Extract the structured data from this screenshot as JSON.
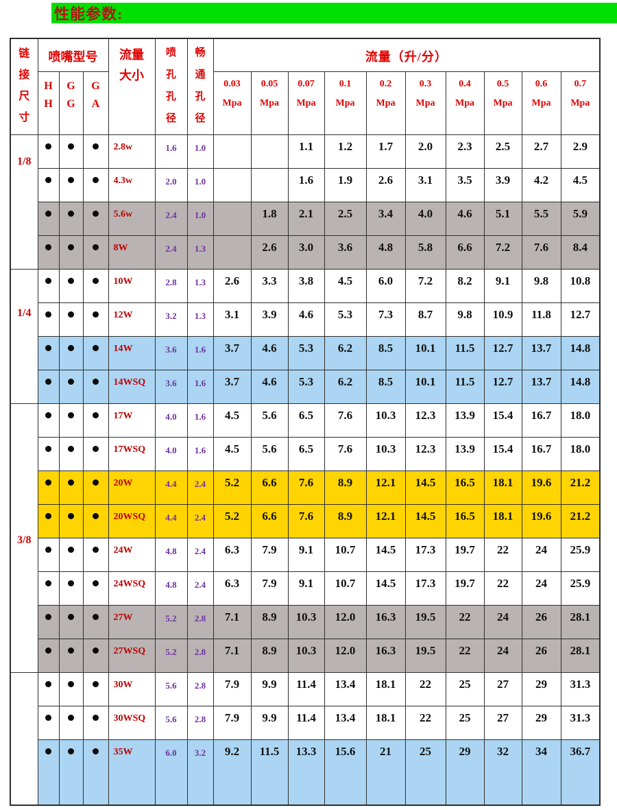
{
  "title": "性能参数:",
  "colors": {
    "row_gray": "#b9b3b3",
    "row_blue": "#abd5f2",
    "row_yellow": "#ffd400",
    "header_green": "#00e000",
    "header_red": "#e10000",
    "value_purple": "#7030a0",
    "model_red": "#c00000",
    "title_red": "#b41414"
  },
  "table": {
    "headers": {
      "connection_size": "链接尺寸",
      "nozzle_model": "喷嘴型号",
      "model_columns": [
        "HH",
        "GG",
        "GA"
      ],
      "flow_size_lines": [
        "流量",
        "大小"
      ],
      "orifice_diameter": "喷孔孔径",
      "free_passage_diameter": "畅通孔径",
      "flow_rate_title": "流量（升/分）",
      "pressures": [
        "0.03",
        "0.05",
        "0.07",
        "0.1",
        "0.2",
        "0.3",
        "0.4",
        "0.5",
        "0.6",
        "0.7"
      ],
      "pressure_unit": "Mpa"
    },
    "sections": [
      {
        "size": "1/8",
        "rows": [
          {
            "model": "2.8w",
            "dots": [
              true,
              true,
              true
            ],
            "orifice": "1.6",
            "passage": "1.0",
            "bg": "white",
            "flows": [
              "",
              "",
              "1.1",
              "1.2",
              "1.7",
              "2.0",
              "2.3",
              "2.5",
              "2.7",
              "2.9"
            ]
          },
          {
            "model": "4.3w",
            "dots": [
              true,
              true,
              true
            ],
            "orifice": "2.0",
            "passage": "1.0",
            "bg": "white",
            "flows": [
              "",
              "",
              "1.6",
              "1.9",
              "2.6",
              "3.1",
              "3.5",
              "3.9",
              "4.2",
              "4.5"
            ]
          },
          {
            "model": "5.6w",
            "dots": [
              true,
              true,
              true
            ],
            "orifice": "2.4",
            "passage": "1.0",
            "bg": "gray",
            "flows": [
              "",
              "1.8",
              "2.1",
              "2.5",
              "3.4",
              "4.0",
              "4.6",
              "5.1",
              "5.5",
              "5.9"
            ]
          },
          {
            "model": "8W",
            "dots": [
              true,
              true,
              true
            ],
            "orifice": "2.4",
            "passage": "1.3",
            "bg": "gray",
            "flows": [
              "",
              "2.6",
              "3.0",
              "3.6",
              "4.8",
              "5.8",
              "6.6",
              "7.2",
              "7.6",
              "8.4"
            ]
          }
        ]
      },
      {
        "size": "1/4",
        "rows": [
          {
            "model": "10W",
            "dots": [
              true,
              true,
              true
            ],
            "orifice": "2.8",
            "passage": "1.3",
            "bg": "white",
            "flows": [
              "2.6",
              "3.3",
              "3.8",
              "4.5",
              "6.0",
              "7.2",
              "8.2",
              "9.1",
              "9.8",
              "10.8"
            ]
          },
          {
            "model": "12W",
            "dots": [
              true,
              true,
              true
            ],
            "orifice": "3.2",
            "passage": "1.3",
            "bg": "white",
            "flows": [
              "3.1",
              "3.9",
              "4.6",
              "5.3",
              "7.3",
              "8.7",
              "9.8",
              "10.9",
              "11.8",
              "12.7"
            ]
          },
          {
            "model": "14W",
            "dots": [
              true,
              true,
              true
            ],
            "orifice": "3.6",
            "passage": "1.6",
            "bg": "blue",
            "flows": [
              "3.7",
              "4.6",
              "5.3",
              "6.2",
              "8.5",
              "10.1",
              "11.5",
              "12.7",
              "13.7",
              "14.8"
            ]
          },
          {
            "model": "14WSQ",
            "dots": [
              true,
              true,
              true
            ],
            "orifice": "3.6",
            "passage": "1.6",
            "bg": "blue",
            "flows": [
              "3.7",
              "4.6",
              "5.3",
              "6.2",
              "8.5",
              "10.1",
              "11.5",
              "12.7",
              "13.7",
              "14.8"
            ]
          }
        ]
      },
      {
        "size": "3/8",
        "rows": [
          {
            "model": "17W",
            "dots": [
              true,
              true,
              true
            ],
            "orifice": "4.0",
            "passage": "1.6",
            "bg": "white",
            "flows": [
              "4.5",
              "5.6",
              "6.5",
              "7.6",
              "10.3",
              "12.3",
              "13.9",
              "15.4",
              "16.7",
              "18.0"
            ]
          },
          {
            "model": "17WSQ",
            "dots": [
              true,
              true,
              true
            ],
            "orifice": "4.0",
            "passage": "1.6",
            "bg": "white",
            "flows": [
              "4.5",
              "5.6",
              "6.5",
              "7.6",
              "10.3",
              "12.3",
              "13.9",
              "15.4",
              "16.7",
              "18.0"
            ]
          },
          {
            "model": "20W",
            "dots": [
              true,
              true,
              true
            ],
            "orifice": "4.4",
            "passage": "2.4",
            "bg": "yellow",
            "flows": [
              "5.2",
              "6.6",
              "7.6",
              "8.9",
              "12.1",
              "14.5",
              "16.5",
              "18.1",
              "19.6",
              "21.2"
            ]
          },
          {
            "model": "20WSQ",
            "dots": [
              true,
              true,
              true
            ],
            "orifice": "4.4",
            "passage": "2.4",
            "bg": "yellow",
            "flows": [
              "5.2",
              "6.6",
              "7.6",
              "8.9",
              "12.1",
              "14.5",
              "16.5",
              "18.1",
              "19.6",
              "21.2"
            ]
          },
          {
            "model": "24W",
            "dots": [
              true,
              true,
              true
            ],
            "orifice": "4.8",
            "passage": "2.4",
            "bg": "white",
            "flows": [
              "6.3",
              "7.9",
              "9.1",
              "10.7",
              "14.5",
              "17.3",
              "19.7",
              "22",
              "24",
              "25.9"
            ]
          },
          {
            "model": "24WSQ",
            "dots": [
              true,
              true,
              true
            ],
            "orifice": "4.8",
            "passage": "2.4",
            "bg": "white",
            "flows": [
              "6.3",
              "7.9",
              "9.1",
              "10.7",
              "14.5",
              "17.3",
              "19.7",
              "22",
              "24",
              "25.9"
            ]
          },
          {
            "model": "27W",
            "dots": [
              true,
              true,
              true
            ],
            "orifice": "5.2",
            "passage": "2.8",
            "bg": "gray",
            "flows": [
              "7.1",
              "8.9",
              "10.3",
              "12.0",
              "16.3",
              "19.5",
              "22",
              "24",
              "26",
              "28.1"
            ]
          },
          {
            "model": "27WSQ",
            "dots": [
              true,
              true,
              true
            ],
            "orifice": "5.2",
            "passage": "2.8",
            "bg": "gray",
            "flows": [
              "7.1",
              "8.9",
              "10.3",
              "12.0",
              "16.3",
              "19.5",
              "22",
              "24",
              "26",
              "28.1"
            ]
          }
        ]
      },
      {
        "size": "",
        "rows": [
          {
            "model": "30W",
            "dots": [
              true,
              true,
              true
            ],
            "orifice": "5.6",
            "passage": "2.8",
            "bg": "white",
            "flows": [
              "7.9",
              "9.9",
              "11.4",
              "13.4",
              "18.1",
              "22",
              "25",
              "27",
              "29",
              "31.3"
            ]
          },
          {
            "model": "30WSQ",
            "dots": [
              true,
              true,
              true
            ],
            "orifice": "5.6",
            "passage": "2.8",
            "bg": "white",
            "flows": [
              "7.9",
              "9.9",
              "11.4",
              "13.4",
              "18.1",
              "22",
              "25",
              "27",
              "29",
              "31.3"
            ]
          },
          {
            "model": "35W",
            "dots": [
              true,
              true,
              true
            ],
            "orifice": "6.0",
            "passage": "3.2",
            "bg": "blue",
            "tall": true,
            "flows": [
              "9.2",
              "11.5",
              "13.3",
              "15.6",
              "21",
              "25",
              "29",
              "32",
              "34",
              "36.7"
            ]
          }
        ]
      }
    ]
  }
}
